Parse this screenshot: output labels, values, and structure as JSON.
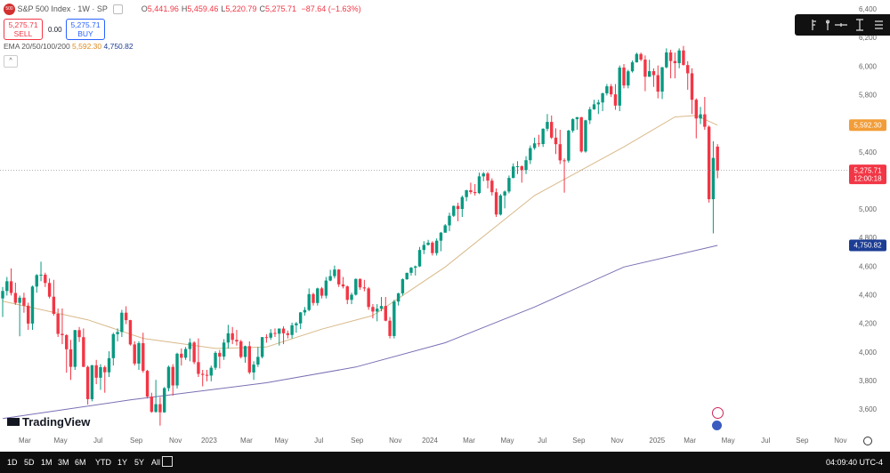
{
  "header": {
    "badge": "500",
    "symbol": "S&P 500 Index · 1W · SP",
    "ohlc": [
      {
        "key": "O",
        "value": "5,441.96"
      },
      {
        "key": "H",
        "value": "5,459.46"
      },
      {
        "key": "L",
        "value": "5,220.79"
      },
      {
        "key": "C",
        "value": "5,275.71"
      }
    ],
    "change": "−87.64 (−1.63%)",
    "sell_price": "5,275.71",
    "sell": "SELL",
    "spread": "0.00",
    "buy_price": "5,275.71",
    "buy": "BUY",
    "indicator": "EMA 20/50/100/200"
  },
  "chart_data": {
    "type": "candlestick",
    "up_color": "#089981",
    "down_color": "#f23645",
    "grid": false,
    "xlim": [
      -0.63,
      198.5
    ],
    "ylim": [
      3457,
      6468
    ],
    "yticks": [
      {
        "value": 3600,
        "label": "3,600"
      },
      {
        "value": 3800,
        "label": "3,800"
      },
      {
        "value": 4000,
        "label": "4,000"
      },
      {
        "value": 4200,
        "label": "4,200"
      },
      {
        "value": 4400,
        "label": "4,400"
      },
      {
        "value": 4600,
        "label": "4,600"
      },
      {
        "value": 4800,
        "label": "4,800"
      },
      {
        "value": 5000,
        "label": "5,000"
      },
      {
        "value": 5200,
        "label": "5,200"
      },
      {
        "value": 5400,
        "label": "5,400"
      },
      {
        "value": 5600,
        "label": "5,600"
      },
      {
        "value": 5800,
        "label": "5,800"
      },
      {
        "value": 6000,
        "label": "6,000"
      },
      {
        "value": 6200,
        "label": "6,200"
      },
      {
        "value": 6400,
        "label": "6,400"
      }
    ],
    "xticks": [
      {
        "value": 5.2,
        "label": "Mar"
      },
      {
        "value": 13.6,
        "label": "May"
      },
      {
        "value": 22.4,
        "label": "Jul"
      },
      {
        "value": 31.4,
        "label": "Sep"
      },
      {
        "value": 40.6,
        "label": "Nov"
      },
      {
        "value": 48.5,
        "label": "2023"
      },
      {
        "value": 57.3,
        "label": "Mar"
      },
      {
        "value": 65.5,
        "label": "May"
      },
      {
        "value": 74.3,
        "label": "Jul"
      },
      {
        "value": 83.3,
        "label": "Sep"
      },
      {
        "value": 92.3,
        "label": "Nov"
      },
      {
        "value": 100.4,
        "label": "2024"
      },
      {
        "value": 109.6,
        "label": "Mar"
      },
      {
        "value": 118.6,
        "label": "May"
      },
      {
        "value": 126.8,
        "label": "Jul"
      },
      {
        "value": 135.4,
        "label": "Sep"
      },
      {
        "value": 144.4,
        "label": "Nov"
      },
      {
        "value": 153.8,
        "label": "2025"
      },
      {
        "value": 161.5,
        "label": "Mar"
      },
      {
        "value": 170.5,
        "label": "May"
      },
      {
        "value": 179.3,
        "label": "Jul"
      },
      {
        "value": 187.9,
        "label": "Sep"
      },
      {
        "value": 196.9,
        "label": "Nov"
      }
    ],
    "candles": [
      [
        4380,
        4460,
        4250,
        4432
      ],
      [
        4432,
        4530,
        4400,
        4500
      ],
      [
        4500,
        4590,
        4400,
        4418
      ],
      [
        4418,
        4490,
        4335,
        4349
      ],
      [
        4349,
        4400,
        4115,
        4385
      ],
      [
        4385,
        4420,
        4280,
        4329
      ],
      [
        4329,
        4350,
        4160,
        4204
      ],
      [
        4204,
        4470,
        4160,
        4463
      ],
      [
        4463,
        4550,
        4420,
        4543
      ],
      [
        4543,
        4637,
        4500,
        4546
      ],
      [
        4546,
        4560,
        4460,
        4488
      ],
      [
        4488,
        4520,
        4380,
        4392
      ],
      [
        4392,
        4510,
        4260,
        4272
      ],
      [
        4272,
        4310,
        4110,
        4132
      ],
      [
        4132,
        4310,
        4060,
        4123
      ],
      [
        4123,
        4130,
        3860,
        4024
      ],
      [
        4024,
        4090,
        3810,
        3901
      ],
      [
        3901,
        4160,
        3880,
        4158
      ],
      [
        4158,
        4180,
        4075,
        4109
      ],
      [
        4109,
        4170,
        3900,
        3901
      ],
      [
        3901,
        3910,
        3637,
        3675
      ],
      [
        3675,
        3915,
        3660,
        3912
      ],
      [
        3912,
        3950,
        3780,
        3825
      ],
      [
        3825,
        3920,
        3740,
        3899
      ],
      [
        3899,
        3910,
        3720,
        3863
      ],
      [
        3863,
        4010,
        3830,
        3962
      ],
      [
        3962,
        4140,
        3910,
        4130
      ],
      [
        4130,
        4170,
        4080,
        4145
      ],
      [
        4145,
        4300,
        4110,
        4280
      ],
      [
        4280,
        4325,
        4200,
        4228
      ],
      [
        4228,
        4230,
        4050,
        4058
      ],
      [
        4058,
        4080,
        3910,
        3924
      ],
      [
        3924,
        4080,
        3880,
        4067
      ],
      [
        4067,
        4140,
        3860,
        3873
      ],
      [
        3873,
        3880,
        3680,
        3693
      ],
      [
        3693,
        3720,
        3580,
        3586
      ],
      [
        3586,
        3810,
        3580,
        3640
      ],
      [
        3640,
        3690,
        3490,
        3583
      ],
      [
        3583,
        3760,
        3580,
        3752
      ],
      [
        3752,
        3910,
        3730,
        3901
      ],
      [
        3901,
        3920,
        3700,
        3771
      ],
      [
        3771,
        4000,
        3750,
        3993
      ],
      [
        3993,
        4030,
        3910,
        3965
      ],
      [
        3965,
        4040,
        3950,
        4026
      ],
      [
        4026,
        4100,
        3940,
        4071
      ],
      [
        4071,
        4080,
        3920,
        3934
      ],
      [
        3934,
        4100,
        3830,
        3852
      ],
      [
        3852,
        3880,
        3765,
        3845
      ],
      [
        3845,
        3880,
        3800,
        3840
      ],
      [
        3840,
        3910,
        3800,
        3895
      ],
      [
        3895,
        4010,
        3880,
        3999
      ],
      [
        3999,
        4020,
        3890,
        3973
      ],
      [
        3973,
        4095,
        3950,
        4071
      ],
      [
        4071,
        4195,
        4030,
        4136
      ],
      [
        4136,
        4180,
        4060,
        4090
      ],
      [
        4090,
        4160,
        4050,
        4079
      ],
      [
        4079,
        4090,
        3960,
        3970
      ],
      [
        3970,
        4050,
        3930,
        4046
      ],
      [
        4046,
        4080,
        3850,
        3862
      ],
      [
        3862,
        3940,
        3810,
        3917
      ],
      [
        3917,
        4040,
        3900,
        3971
      ],
      [
        3971,
        4110,
        3960,
        4109
      ],
      [
        4109,
        4130,
        4070,
        4105
      ],
      [
        4105,
        4165,
        4090,
        4138
      ],
      [
        4138,
        4170,
        4110,
        4133
      ],
      [
        4133,
        4170,
        4050,
        4169
      ],
      [
        4169,
        4185,
        4060,
        4136
      ],
      [
        4136,
        4155,
        4100,
        4124
      ],
      [
        4124,
        4210,
        4100,
        4192
      ],
      [
        4192,
        4215,
        4140,
        4205
      ],
      [
        4205,
        4285,
        4165,
        4282
      ],
      [
        4282,
        4320,
        4260,
        4299
      ],
      [
        4299,
        4450,
        4290,
        4410
      ],
      [
        4410,
        4420,
        4330,
        4348
      ],
      [
        4348,
        4455,
        4330,
        4450
      ],
      [
        4450,
        4460,
        4380,
        4399
      ],
      [
        4399,
        4530,
        4380,
        4505
      ],
      [
        4505,
        4580,
        4500,
        4536
      ],
      [
        4536,
        4610,
        4520,
        4582
      ],
      [
        4582,
        4585,
        4460,
        4478
      ],
      [
        4478,
        4530,
        4450,
        4464
      ],
      [
        4464,
        4470,
        4340,
        4370
      ],
      [
        4370,
        4420,
        4340,
        4406
      ],
      [
        4406,
        4520,
        4400,
        4516
      ],
      [
        4516,
        4520,
        4440,
        4457
      ],
      [
        4457,
        4510,
        4430,
        4450
      ],
      [
        4450,
        4460,
        4300,
        4320
      ],
      [
        4320,
        4340,
        4240,
        4288
      ],
      [
        4288,
        4340,
        4220,
        4308
      ],
      [
        4308,
        4390,
        4290,
        4327
      ],
      [
        4327,
        4390,
        4220,
        4224
      ],
      [
        4224,
        4250,
        4100,
        4117
      ],
      [
        4117,
        4370,
        4100,
        4358
      ],
      [
        4358,
        4420,
        4330,
        4415
      ],
      [
        4415,
        4520,
        4400,
        4514
      ],
      [
        4514,
        4560,
        4510,
        4559
      ],
      [
        4559,
        4600,
        4540,
        4595
      ],
      [
        4595,
        4610,
        4540,
        4604
      ],
      [
        4604,
        4740,
        4600,
        4719
      ],
      [
        4719,
        4780,
        4690,
        4754
      ],
      [
        4754,
        4790,
        4750,
        4770
      ],
      [
        4770,
        4780,
        4680,
        4697
      ],
      [
        4697,
        4800,
        4680,
        4784
      ],
      [
        4784,
        4845,
        4710,
        4840
      ],
      [
        4840,
        4900,
        4840,
        4891
      ],
      [
        4891,
        4980,
        4850,
        4958
      ],
      [
        4958,
        5030,
        4950,
        5027
      ],
      [
        5027,
        5050,
        4920,
        5006
      ],
      [
        5006,
        5100,
        4950,
        5089
      ],
      [
        5089,
        5140,
        5060,
        5137
      ],
      [
        5137,
        5190,
        5110,
        5124
      ],
      [
        5124,
        5180,
        5100,
        5117
      ],
      [
        5117,
        5260,
        5110,
        5234
      ],
      [
        5234,
        5265,
        5200,
        5254
      ],
      [
        5254,
        5265,
        5150,
        5204
      ],
      [
        5204,
        5220,
        5100,
        5123
      ],
      [
        5123,
        5150,
        4950,
        4967
      ],
      [
        4967,
        5110,
        4960,
        5100
      ],
      [
        5100,
        5135,
        5010,
        5128
      ],
      [
        5128,
        5240,
        5115,
        5223
      ],
      [
        5223,
        5325,
        5220,
        5303
      ],
      [
        5303,
        5340,
        5250,
        5305
      ],
      [
        5305,
        5310,
        5190,
        5278
      ],
      [
        5278,
        5375,
        5250,
        5347
      ],
      [
        5347,
        5450,
        5320,
        5432
      ],
      [
        5432,
        5505,
        5420,
        5465
      ],
      [
        5465,
        5525,
        5440,
        5460
      ],
      [
        5460,
        5570,
        5440,
        5567
      ],
      [
        5567,
        5670,
        5550,
        5615
      ],
      [
        5615,
        5660,
        5495,
        5505
      ],
      [
        5505,
        5570,
        5390,
        5459
      ],
      [
        5459,
        5560,
        5320,
        5346
      ],
      [
        5346,
        5360,
        5120,
        5344
      ],
      [
        5344,
        5560,
        5330,
        5554
      ],
      [
        5554,
        5640,
        5540,
        5634
      ],
      [
        5634,
        5650,
        5560,
        5648
      ],
      [
        5648,
        5650,
        5400,
        5408
      ],
      [
        5408,
        5630,
        5400,
        5626
      ],
      [
        5626,
        5720,
        5600,
        5703
      ],
      [
        5703,
        5770,
        5700,
        5738
      ],
      [
        5738,
        5770,
        5670,
        5751
      ],
      [
        5751,
        5820,
        5690,
        5815
      ],
      [
        5815,
        5880,
        5800,
        5864
      ],
      [
        5864,
        5880,
        5790,
        5808
      ],
      [
        5808,
        5880,
        5700,
        5729
      ],
      [
        5729,
        6010,
        5690,
        5995
      ],
      [
        5995,
        6020,
        5850,
        5870
      ],
      [
        5870,
        5980,
        5850,
        5969
      ],
      [
        5969,
        6045,
        5960,
        6032
      ],
      [
        6032,
        6100,
        6030,
        6090
      ],
      [
        6090,
        6100,
        6040,
        6051
      ],
      [
        6051,
        6080,
        5830,
        5931
      ],
      [
        5931,
        6050,
        5930,
        5970
      ],
      [
        5970,
        5990,
        5860,
        5942
      ],
      [
        5942,
        6010,
        5780,
        5827
      ],
      [
        5827,
        6000,
        5775,
        5997
      ],
      [
        5997,
        6130,
        5990,
        6101
      ],
      [
        6101,
        6120,
        5920,
        6041
      ],
      [
        6041,
        6100,
        5920,
        6026
      ],
      [
        6026,
        6130,
        5990,
        6115
      ],
      [
        6115,
        6147,
        6010,
        6013
      ],
      [
        6013,
        6040,
        5840,
        5955
      ],
      [
        5955,
        5990,
        5670,
        5770
      ],
      [
        5770,
        5780,
        5500,
        5639
      ],
      [
        5639,
        5720,
        5600,
        5668
      ],
      [
        5668,
        5790,
        5560,
        5581
      ],
      [
        5581,
        5590,
        5050,
        5074
      ],
      [
        5074,
        5480,
        4835,
        5363
      ],
      [
        5441.96,
        5459.46,
        5220.79,
        5275.71
      ]
    ],
    "last_label": "5,275.71",
    "countdown": "12:00:18",
    "last_color": "#f23645",
    "series": [
      {
        "color": "#d9b98a",
        "tag_color": "#f29d38",
        "x": [
          0,
          20,
          33,
          50,
          62,
          75,
          87,
          104,
          125,
          146,
          158,
          163,
          168
        ],
        "values": [
          4360,
          4230,
          4100,
          4030,
          4040,
          4165,
          4260,
          4600,
          5100,
          5440,
          5650,
          5660,
          5592.3
        ],
        "value_label": "5,592.30"
      },
      {
        "color": "#7b6fb3",
        "tag_color": "#1c3d94",
        "x": [
          0,
          30,
          62,
          83,
          104,
          125,
          146,
          168
        ],
        "values": [
          3540,
          3670,
          3790,
          3900,
          4070,
          4320,
          4600,
          4750.82
        ],
        "value_label": "4,750.82"
      }
    ]
  },
  "footer": {
    "ranges": [
      "1D",
      "5D",
      "1M",
      "3M",
      "6M",
      "YTD",
      "1Y",
      "5Y",
      "All"
    ],
    "clock": "04:09:40 UTC-4"
  },
  "logo": "TradingView"
}
